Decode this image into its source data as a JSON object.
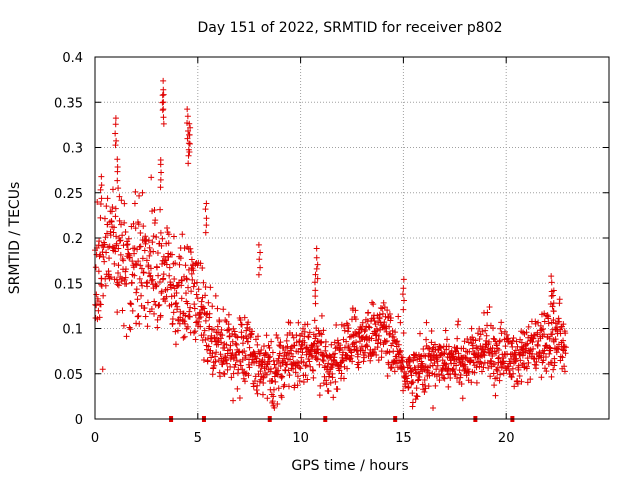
{
  "chart_data": {
    "type": "scatter",
    "title": "Day 151 of 2022, SRMTID for receiver p802",
    "xlabel": "GPS time / hours",
    "ylabel": "SRMTID / TECUs",
    "xlim": [
      0,
      25
    ],
    "ylim": [
      0,
      0.4
    ],
    "x_ticks": [
      0,
      5,
      10,
      15,
      20
    ],
    "x_tick_labels": [
      "0",
      "5",
      "10",
      "15",
      "20"
    ],
    "y_ticks": [
      0,
      0.05,
      0.1,
      0.15,
      0.2,
      0.25,
      0.3,
      0.35,
      0.4
    ],
    "y_tick_labels": [
      "0",
      "0.05",
      "0.1",
      "0.15",
      "0.2",
      "0.25",
      "0.3",
      "0.35",
      "0.4"
    ],
    "grid": true,
    "marker": "+",
    "color": "#e00000",
    "time_range_hours": [
      0.0,
      22.9
    ],
    "trend": {
      "hours": [
        0,
        0.5,
        1,
        1.5,
        2,
        2.5,
        3,
        3.5,
        4,
        4.5,
        5,
        5.5,
        6,
        6.5,
        7,
        7.5,
        8,
        8.5,
        9,
        9.5,
        10,
        10.5,
        11,
        11.5,
        12,
        12.5,
        13,
        13.5,
        14,
        14.5,
        15,
        15.5,
        16,
        16.5,
        17,
        17.5,
        18,
        18.5,
        19,
        19.5,
        20,
        20.5,
        21,
        21.5,
        22,
        22.5,
        22.9
      ],
      "srmtid": [
        0.15,
        0.19,
        0.2,
        0.17,
        0.16,
        0.17,
        0.17,
        0.16,
        0.13,
        0.14,
        0.13,
        0.1,
        0.085,
        0.08,
        0.075,
        0.07,
        0.065,
        0.05,
        0.055,
        0.07,
        0.075,
        0.08,
        0.065,
        0.06,
        0.07,
        0.085,
        0.09,
        0.095,
        0.1,
        0.08,
        0.055,
        0.05,
        0.06,
        0.065,
        0.07,
        0.07,
        0.065,
        0.065,
        0.08,
        0.07,
        0.07,
        0.065,
        0.07,
        0.08,
        0.085,
        0.09,
        0.08
      ]
    },
    "spread": {
      "hours": [
        0,
        2,
        4,
        5,
        6,
        10,
        15,
        20,
        22.9
      ],
      "srmtid": [
        0.04,
        0.045,
        0.04,
        0.035,
        0.025,
        0.022,
        0.02,
        0.02,
        0.02
      ]
    },
    "peaks": [
      {
        "hour": 1.0,
        "srmtid": 0.335
      },
      {
        "hour": 1.1,
        "srmtid": 0.29
      },
      {
        "hour": 0.3,
        "srmtid": 0.27
      },
      {
        "hour": 3.3,
        "srmtid": 0.375
      },
      {
        "hour": 3.35,
        "srmtid": 0.36
      },
      {
        "hour": 3.2,
        "srmtid": 0.29
      },
      {
        "hour": 4.5,
        "srmtid": 0.345
      },
      {
        "hour": 4.6,
        "srmtid": 0.33
      },
      {
        "hour": 4.55,
        "srmtid": 0.315
      },
      {
        "hour": 5.4,
        "srmtid": 0.24
      },
      {
        "hour": 8.0,
        "srmtid": 0.195
      },
      {
        "hour": 10.8,
        "srmtid": 0.19
      },
      {
        "hour": 10.7,
        "srmtid": 0.16
      },
      {
        "hour": 15.0,
        "srmtid": 0.155
      },
      {
        "hour": 22.2,
        "srmtid": 0.16
      },
      {
        "hour": 22.3,
        "srmtid": 0.145
      }
    ],
    "gap_markers_hours": [
      3.7,
      5.3,
      8.5,
      11.2,
      14.6,
      18.5,
      20.3
    ]
  }
}
